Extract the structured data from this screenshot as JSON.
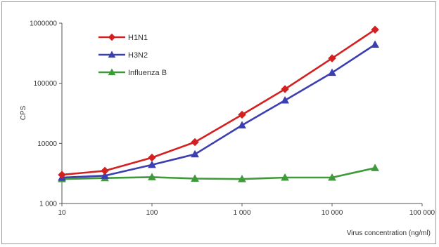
{
  "chart_data": {
    "type": "line",
    "title": "",
    "xlabel": "Virus concentration (ng/ml)",
    "ylabel": "CPS",
    "xscale": "log",
    "yscale": "log",
    "xlim": [
      10,
      100000
    ],
    "ylim": [
      1000,
      1000000
    ],
    "x_ticks": [
      10,
      100,
      1000,
      10000,
      100000
    ],
    "x_tick_labels": [
      "10",
      "100",
      "1 000",
      "10 000",
      "100 000"
    ],
    "y_ticks": [
      1000,
      10000,
      100000,
      1000000
    ],
    "y_tick_labels": [
      "1 000",
      "10000",
      "100000",
      "1000000"
    ],
    "grid": false,
    "legend_position": "top-left",
    "x": [
      10,
      30,
      100,
      300,
      1000,
      3000,
      10000,
      30000
    ],
    "series": [
      {
        "name": "H1N1",
        "color": "#d42020",
        "marker": "diamond",
        "values": [
          3000,
          3500,
          5800,
          10500,
          30000,
          80000,
          260000,
          780000
        ]
      },
      {
        "name": "H3N2",
        "color": "#3b3fb0",
        "marker": "triangle",
        "values": [
          2700,
          2900,
          4400,
          6600,
          20000,
          52000,
          150000,
          440000
        ]
      },
      {
        "name": "Influenza B",
        "color": "#3f9a3a",
        "marker": "triangle",
        "values": [
          2550,
          2650,
          2750,
          2600,
          2550,
          2700,
          2700,
          3900
        ]
      }
    ]
  }
}
